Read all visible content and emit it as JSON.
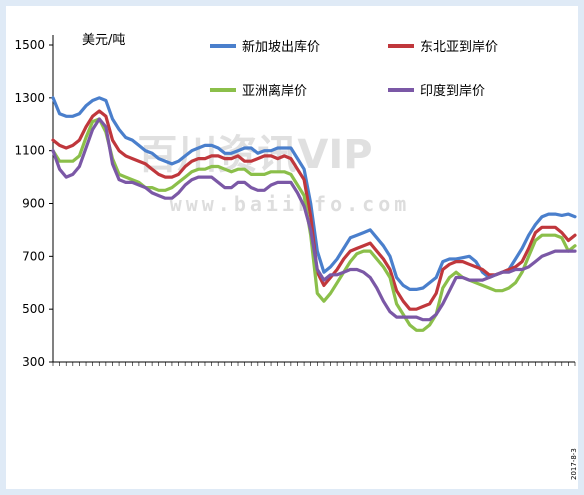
{
  "chart_data": {
    "type": "line",
    "unit_label": "美元/吨",
    "ylim": [
      300,
      1500
    ],
    "yticks": [
      300,
      500,
      700,
      900,
      1100,
      1300,
      1500
    ],
    "x_last_label": "2017-8-3",
    "grid": false,
    "legend_placement": "top",
    "watermark": {
      "main": "百川资讯VIP",
      "sub": "www.baiinfo.com"
    },
    "series": [
      {
        "name": "新加坡出库价",
        "color": "#4a7fcc",
        "values": [
          1300,
          1240,
          1230,
          1230,
          1240,
          1270,
          1290,
          1300,
          1290,
          1220,
          1180,
          1150,
          1140,
          1120,
          1100,
          1090,
          1070,
          1060,
          1050,
          1060,
          1080,
          1100,
          1110,
          1120,
          1120,
          1110,
          1090,
          1090,
          1100,
          1110,
          1110,
          1090,
          1100,
          1100,
          1110,
          1110,
          1110,
          1070,
          1030,
          900,
          720,
          640,
          660,
          690,
          730,
          770,
          780,
          790,
          800,
          770,
          740,
          700,
          620,
          590,
          575,
          575,
          580,
          600,
          620,
          680,
          690,
          690,
          695,
          700,
          680,
          640,
          620,
          630,
          640,
          650,
          690,
          730,
          780,
          820,
          850,
          860,
          860,
          855,
          860,
          850
        ]
      },
      {
        "name": "东北亚到岸价",
        "color": "#c0373c",
        "values": [
          1140,
          1120,
          1110,
          1120,
          1140,
          1190,
          1230,
          1250,
          1230,
          1140,
          1100,
          1080,
          1070,
          1060,
          1050,
          1030,
          1010,
          1000,
          1000,
          1010,
          1040,
          1060,
          1070,
          1070,
          1080,
          1080,
          1070,
          1070,
          1080,
          1060,
          1060,
          1070,
          1080,
          1080,
          1070,
          1080,
          1070,
          1030,
          990,
          850,
          640,
          590,
          620,
          650,
          690,
          720,
          730,
          740,
          750,
          720,
          690,
          650,
          570,
          530,
          500,
          500,
          510,
          520,
          560,
          650,
          670,
          680,
          680,
          670,
          660,
          650,
          630,
          630,
          640,
          650,
          660,
          680,
          730,
          790,
          810,
          810,
          810,
          790,
          760,
          780
        ]
      },
      {
        "name": "亚洲离岸价",
        "color": "#8bbf4a",
        "values": [
          1100,
          1060,
          1060,
          1060,
          1080,
          1150,
          1210,
          1220,
          1170,
          1070,
          1010,
          1000,
          990,
          980,
          960,
          960,
          950,
          950,
          960,
          980,
          1000,
          1020,
          1030,
          1030,
          1040,
          1040,
          1030,
          1020,
          1030,
          1030,
          1010,
          1010,
          1010,
          1020,
          1020,
          1020,
          1010,
          970,
          930,
          780,
          560,
          530,
          560,
          600,
          640,
          680,
          710,
          720,
          720,
          690,
          660,
          620,
          520,
          480,
          440,
          420,
          420,
          440,
          480,
          580,
          620,
          640,
          620,
          610,
          600,
          590,
          580,
          570,
          570,
          580,
          600,
          640,
          700,
          760,
          780,
          780,
          780,
          770,
          720,
          740
        ]
      },
      {
        "name": "印度到岸价",
        "color": "#7b58a6",
        "values": [
          1100,
          1030,
          1000,
          1010,
          1040,
          1110,
          1180,
          1220,
          1190,
          1050,
          990,
          980,
          980,
          970,
          960,
          940,
          930,
          920,
          920,
          940,
          970,
          990,
          1000,
          1000,
          1000,
          980,
          960,
          960,
          980,
          980,
          960,
          950,
          950,
          970,
          980,
          980,
          980,
          940,
          890,
          800,
          650,
          610,
          630,
          630,
          640,
          650,
          650,
          640,
          620,
          580,
          530,
          490,
          470,
          470,
          470,
          470,
          460,
          460,
          480,
          520,
          570,
          620,
          620,
          610,
          610,
          610,
          620,
          630,
          640,
          640,
          650,
          650,
          660,
          680,
          700,
          710,
          720,
          720,
          720,
          720
        ]
      }
    ]
  }
}
